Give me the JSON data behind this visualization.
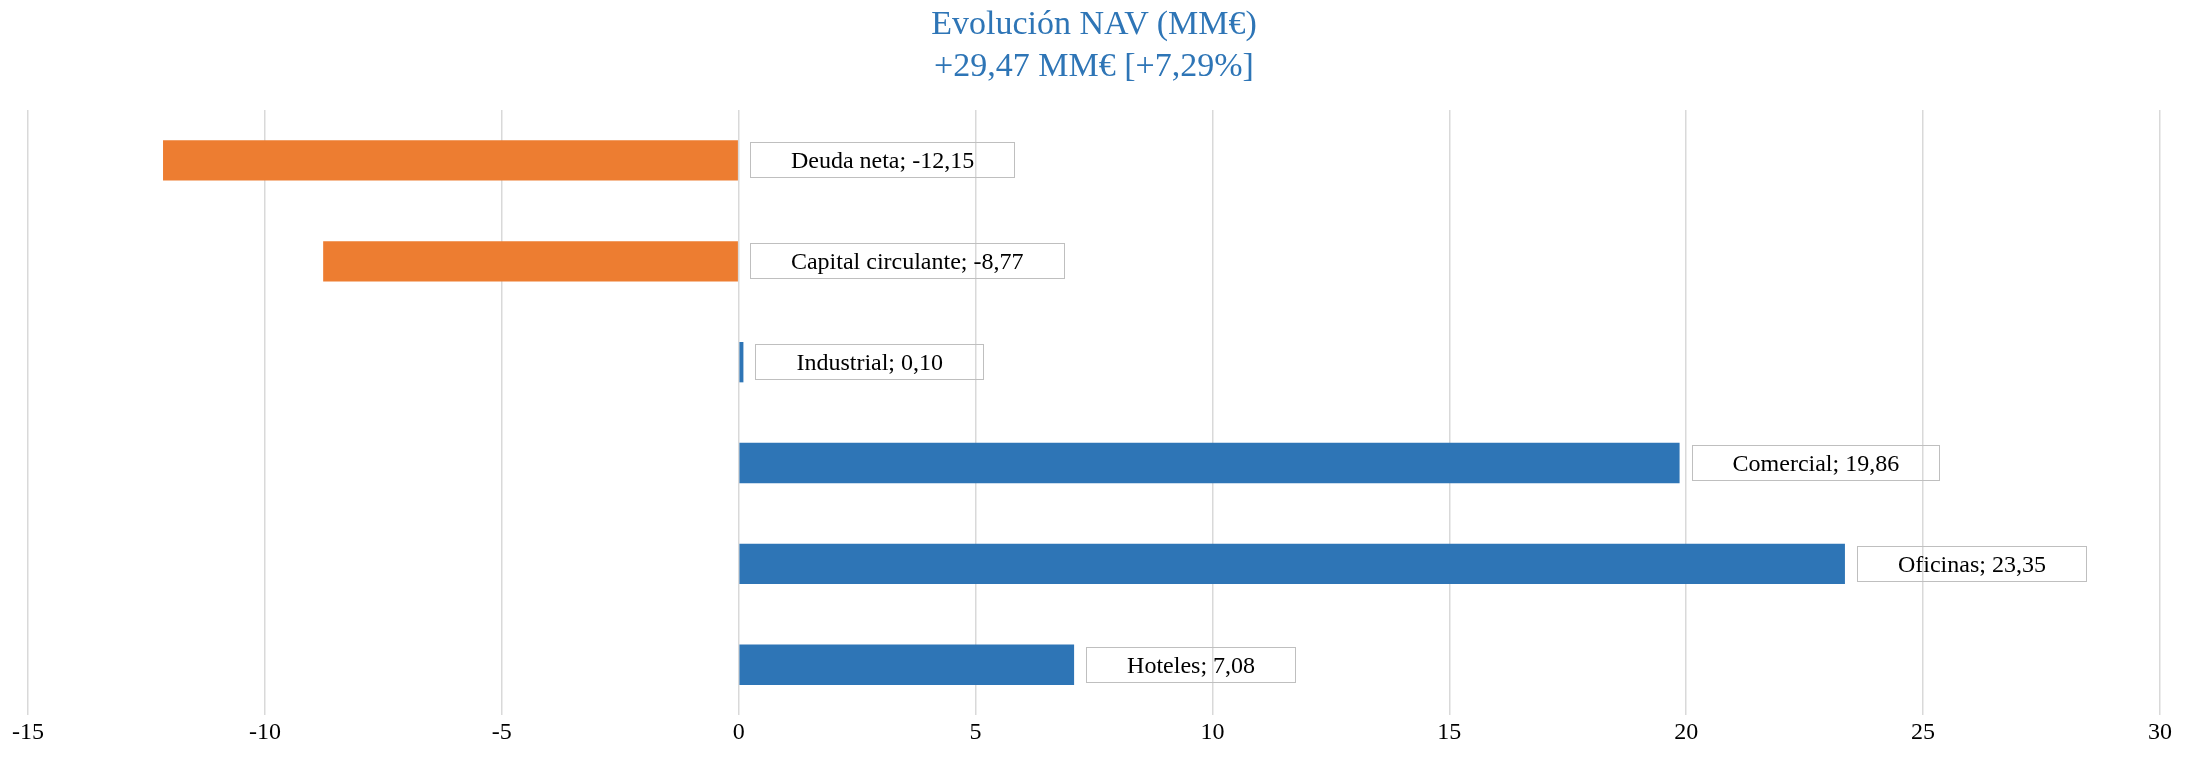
{
  "chart_data": {
    "type": "bar",
    "orientation": "horizontal",
    "title": "Evolución NAV (MM€)",
    "subtitle": "+29,47 MM€ [+7,29%]",
    "categories": [
      null,
      null,
      null,
      null,
      null,
      null
    ],
    "values": [
      -12.15,
      -8.77,
      0.1,
      19.86,
      23.35,
      7.08
    ],
    "colors": [
      "#ed7d31",
      "#ed7d31",
      "#2e75b6",
      "#2e75b6",
      "#2e75b6",
      "#2e75b6"
    ],
    "value_labels": [
      "Deuda neta; -12,15",
      "Capital circulante; -8,77",
      "Industrial; 0,10",
      "Comercial; 19,86",
      "Oficinas; 23,35",
      "Hoteles; 7,08"
    ],
    "xlim": [
      -15,
      30
    ],
    "xticks": [
      -15,
      -10,
      -5,
      0,
      5,
      10,
      15,
      20,
      25,
      30
    ],
    "grid": "x",
    "legend": false
  }
}
